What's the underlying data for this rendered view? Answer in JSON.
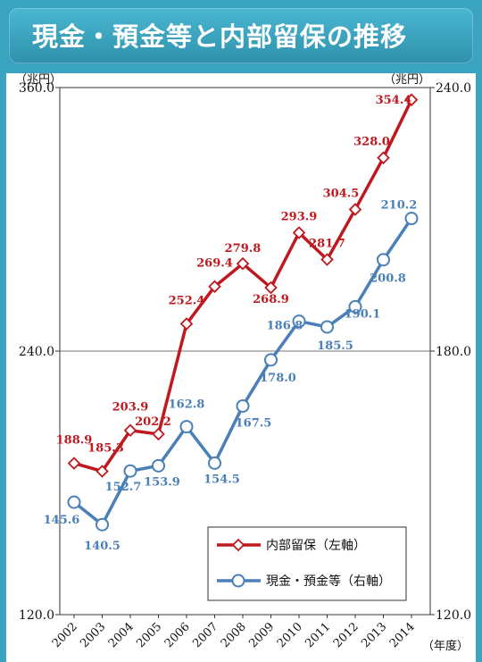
{
  "header": {
    "title": "現金・預金等と内部留保の推移"
  },
  "chart_data": {
    "type": "line",
    "x": [
      "2002",
      "2003",
      "2004",
      "2005",
      "2006",
      "2007",
      "2008",
      "2009",
      "2010",
      "2011",
      "2012",
      "2013",
      "2014"
    ],
    "x_unit": "（年度）",
    "y_left": {
      "unit": "（兆円）",
      "lim": [
        120.0,
        360.0
      ],
      "ticks": [
        "120.0",
        "240.0",
        "360.0"
      ]
    },
    "y_right": {
      "unit": "（兆円）",
      "lim": [
        120.0,
        240.0
      ],
      "ticks": [
        "120.0",
        "180.0",
        "240.0"
      ]
    },
    "series": [
      {
        "name": "内部留保（左軸）",
        "axis": "left",
        "color": "#c0181f",
        "marker": "diamond",
        "values": [
          188.9,
          185.3,
          203.9,
          202.2,
          252.4,
          269.4,
          279.8,
          268.9,
          293.9,
          281.7,
          304.5,
          328.0,
          354.4
        ],
        "labels": [
          "188.9",
          "185.3",
          "203.9",
          "202.2",
          "252.4",
          "269.4",
          "279.8",
          "268.9",
          "293.9",
          "281.7",
          "304.5",
          "328.0",
          "354.4"
        ]
      },
      {
        "name": "現金・預金等（右軸）",
        "axis": "right",
        "color": "#4a7fb8",
        "marker": "circle",
        "values": [
          145.6,
          140.5,
          152.7,
          153.9,
          162.8,
          154.5,
          167.5,
          178.0,
          186.8,
          185.5,
          190.1,
          200.8,
          210.2
        ],
        "labels": [
          "145.6",
          "140.5",
          "152.7",
          "153.9",
          "162.8",
          "154.5",
          "167.5",
          "178.0",
          "186.8",
          "185.5",
          "190.1",
          "200.8",
          "210.2"
        ]
      }
    ]
  }
}
